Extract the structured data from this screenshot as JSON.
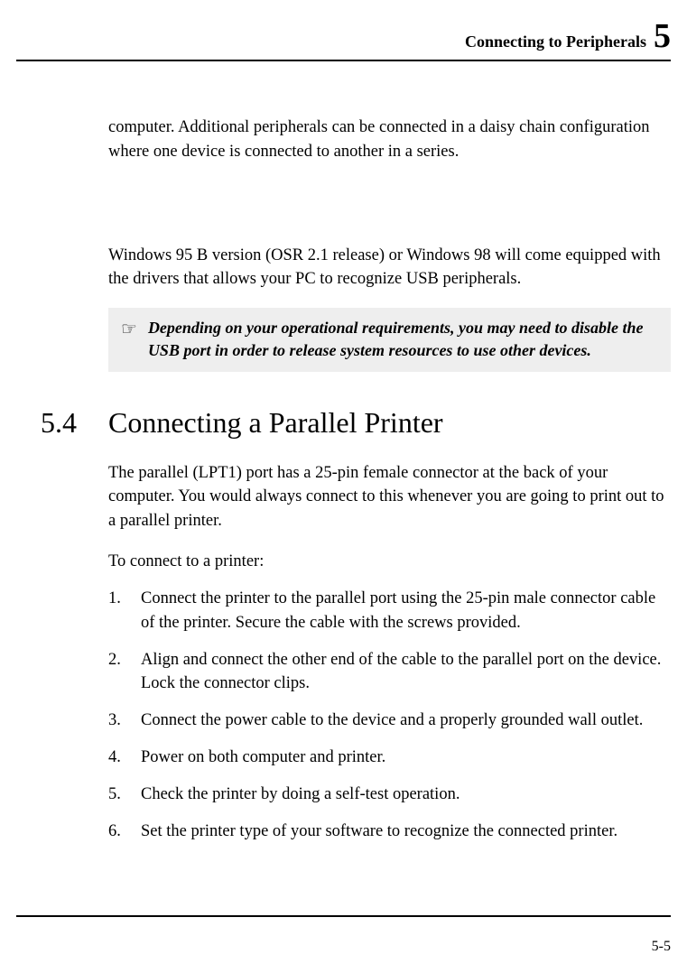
{
  "header": {
    "title": "Connecting to Peripherals",
    "chapter_number": "5"
  },
  "content": {
    "para1": "computer. Additional peripherals can be connected in a daisy chain configuration where one device is connected to another in a series.",
    "para2": "Windows 95 B version (OSR 2.1 release) or Windows 98 will come equipped with the drivers that allows your PC to recognize USB peripherals.",
    "note_icon": "☞",
    "note_text": "Depending on your operational requirements, you may need to disable the USB port in order to release system resources to use other devices.",
    "section_number": "5.4",
    "section_title": "Connecting a Parallel Printer",
    "section_para": "The parallel (LPT1) port has a 25-pin female connector at the back of your computer. You would always connect to this whenever you are going to print out to a parallel printer.",
    "list_intro": "To connect to a printer:",
    "steps": [
      "Connect the printer to the parallel port using the 25-pin male connector cable of the printer. Secure the cable with the screws provided.",
      "Align and connect the other end of the cable to the parallel port on the device. Lock the connector clips.",
      "Connect the power cable to the device and a properly grounded wall outlet.",
      "Power on both computer and printer.",
      "Check the printer by doing a self-test operation.",
      "Set the printer type of your software to recognize the connected printer."
    ]
  },
  "footer": {
    "page_number": "5-5"
  }
}
